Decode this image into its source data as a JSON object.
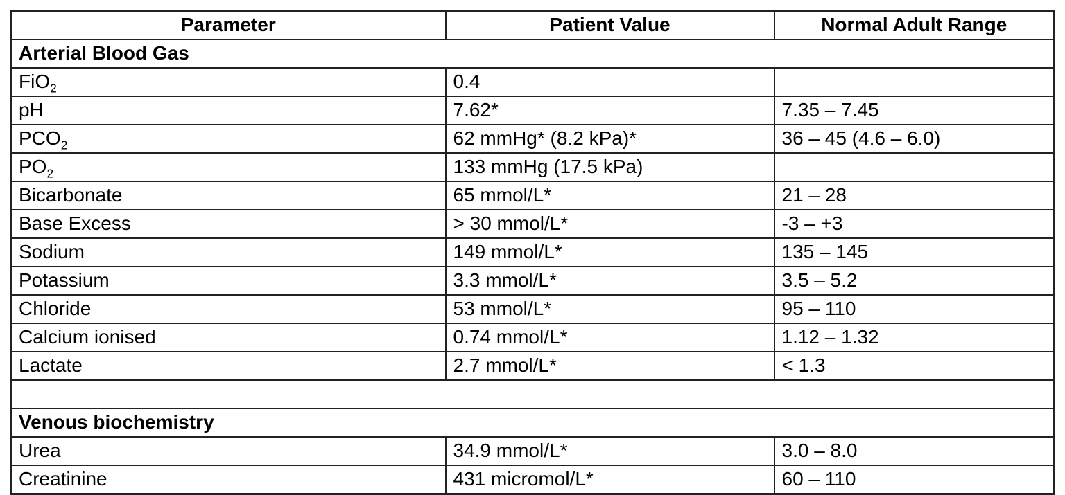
{
  "page": {
    "background": "#ffffff",
    "text_color": "#000000",
    "border_color": "#222222"
  },
  "table": {
    "headers": [
      "Parameter",
      "Patient Value",
      "Normal Adult Range"
    ],
    "rows": [
      {
        "type": "section",
        "label": "Arterial Blood Gas"
      },
      {
        "type": "data",
        "param": "FiO",
        "param_sub": "2",
        "value": "0.4",
        "range": ""
      },
      {
        "type": "data",
        "param": "pH",
        "value": "7.62*",
        "range": "7.35 – 7.45"
      },
      {
        "type": "data",
        "param": "PCO",
        "param_sub": "2",
        "value": "62 mmHg* (8.2 kPa)*",
        "range": "36 – 45 (4.6 – 6.0)"
      },
      {
        "type": "data",
        "param": "PO",
        "param_sub": "2",
        "value": "133 mmHg (17.5 kPa)",
        "range": ""
      },
      {
        "type": "data",
        "param": "Bicarbonate",
        "value": "65 mmol/L*",
        "range": "21 – 28"
      },
      {
        "type": "data",
        "param": "Base Excess",
        "value": "> 30 mmol/L*",
        "range": "-3 – +3"
      },
      {
        "type": "data",
        "param": "Sodium",
        "value": "149 mmol/L*",
        "range": "135 – 145"
      },
      {
        "type": "data",
        "param": "Potassium",
        "value": "3.3 mmol/L*",
        "range": "3.5 – 5.2"
      },
      {
        "type": "data",
        "param": "Chloride",
        "value": "53 mmol/L*",
        "range": "95 – 110"
      },
      {
        "type": "data",
        "param": "Calcium ionised",
        "value": "0.74 mmol/L*",
        "range": "1.12 – 1.32"
      },
      {
        "type": "data",
        "param": "Lactate",
        "value": "2.7 mmol/L*",
        "range": "< 1.3"
      },
      {
        "type": "spacer"
      },
      {
        "type": "section",
        "label": "Venous biochemistry"
      },
      {
        "type": "data",
        "param": "Urea",
        "value": "34.9 mmol/L*",
        "range": "3.0 – 8.0"
      },
      {
        "type": "data",
        "param": "Creatinine",
        "value": "431 micromol/L*",
        "range": "60 – 110"
      }
    ]
  }
}
